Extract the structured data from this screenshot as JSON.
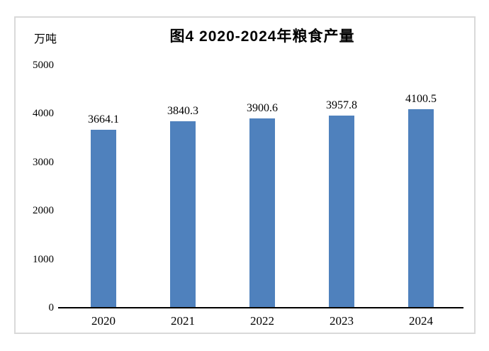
{
  "chart": {
    "frame_border_color": "#d9d9d9",
    "background_color": "#ffffff",
    "axis_line_color": "#000000",
    "text_color": "#000000"
  },
  "chart_data": {
    "type": "bar",
    "title": "图4 2020-2024年粮食产量",
    "xlabel": "",
    "ylabel": "万吨",
    "categories": [
      "2020",
      "2021",
      "2022",
      "2023",
      "2024"
    ],
    "values": [
      3664.1,
      3840.3,
      3900.6,
      3957.8,
      4100.5
    ],
    "data_labels": [
      "3664.1",
      "3840.3",
      "3900.6",
      "3957.8",
      "4100.5"
    ],
    "series_name": "粮食产量",
    "ylim": [
      0,
      5000
    ],
    "yticks": [
      0,
      1000,
      2000,
      3000,
      4000,
      5000
    ],
    "grid": false,
    "legend": "none",
    "bar_color": "#4F81BD"
  }
}
